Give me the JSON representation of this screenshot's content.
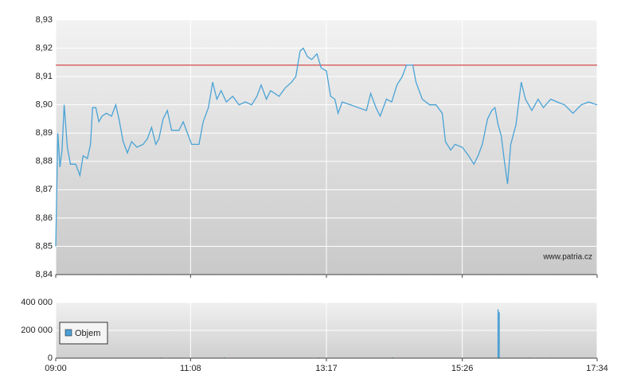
{
  "chart_data": [
    {
      "type": "line",
      "x": [
        540,
        542,
        544,
        546,
        548,
        551,
        554,
        559,
        563,
        566,
        570,
        573,
        575,
        578,
        581,
        584,
        588,
        593,
        597,
        600,
        604,
        608,
        612,
        617,
        623,
        627,
        631,
        635,
        638,
        642,
        646,
        650,
        657,
        661,
        669,
        676,
        680,
        685,
        689,
        693,
        697,
        702,
        708,
        714,
        720,
        726,
        731,
        735,
        740,
        744,
        752,
        758,
        764,
        768,
        772,
        775,
        779,
        783,
        788,
        792,
        797,
        801,
        805,
        808,
        812,
        820,
        827,
        835,
        839,
        844,
        848,
        854,
        859,
        864,
        869,
        873,
        879,
        882,
        888,
        895,
        901,
        907,
        910,
        915,
        919,
        926,
        932,
        937,
        941,
        945,
        950,
        954,
        957,
        960,
        963,
        966,
        969,
        972,
        977,
        982,
        986,
        992,
        998,
        1003,
        1010,
        1016,
        1023,
        1031,
        1039,
        1046,
        1054
      ],
      "values": [
        8.85,
        8.89,
        8.878,
        8.884,
        8.9,
        8.885,
        8.879,
        8.879,
        8.875,
        8.882,
        8.881,
        8.886,
        8.899,
        8.899,
        8.894,
        8.896,
        8.897,
        8.896,
        8.9,
        8.895,
        8.887,
        8.883,
        8.887,
        8.885,
        8.886,
        8.888,
        8.892,
        8.886,
        8.888,
        8.895,
        8.898,
        8.891,
        8.891,
        8.894,
        8.886,
        8.886,
        8.894,
        8.899,
        8.908,
        8.902,
        8.905,
        8.901,
        8.903,
        8.9,
        8.901,
        8.9,
        8.903,
        8.907,
        8.902,
        8.905,
        8.903,
        8.906,
        8.908,
        8.91,
        8.919,
        8.92,
        8.917,
        8.916,
        8.918,
        8.913,
        8.912,
        8.903,
        8.902,
        8.897,
        8.901,
        8.9,
        8.899,
        8.898,
        8.904,
        8.899,
        8.896,
        8.902,
        8.901,
        8.907,
        8.91,
        8.914,
        8.914,
        8.908,
        8.902,
        8.9,
        8.9,
        8.897,
        8.887,
        8.884,
        8.886,
        8.885,
        8.882,
        8.879,
        8.882,
        8.886,
        8.895,
        8.898,
        8.899,
        8.893,
        8.889,
        8.88,
        8.872,
        8.886,
        8.893,
        8.908,
        8.902,
        8.898,
        8.902,
        8.899,
        8.902,
        8.901,
        8.9,
        8.897,
        8.9,
        8.901,
        8.9
      ],
      "color": "#4aa3d6",
      "xlim": [
        540,
        1054
      ],
      "ylim": [
        8.84,
        8.93
      ],
      "yticks": [
        {
          "value": 8.84,
          "label": "8,84"
        },
        {
          "value": 8.85,
          "label": "8,85"
        },
        {
          "value": 8.86,
          "label": "8,86"
        },
        {
          "value": 8.87,
          "label": "8,87"
        },
        {
          "value": 8.88,
          "label": "8,88"
        },
        {
          "value": 8.89,
          "label": "8,89"
        },
        {
          "value": 8.9,
          "label": "8,90"
        },
        {
          "value": 8.91,
          "label": "8,91"
        },
        {
          "value": 8.92,
          "label": "8,92"
        },
        {
          "value": 8.93,
          "label": "8,93"
        }
      ],
      "reference_line": {
        "value": 8.914,
        "color": "#cc2222"
      },
      "watermark": "www.patria.cz",
      "grid": true
    },
    {
      "type": "bar",
      "x": [
        560,
        600,
        640,
        700,
        730,
        760,
        790,
        820,
        860,
        900,
        940,
        960,
        961,
        990,
        1010,
        1040
      ],
      "series": [
        {
          "name": "Objem",
          "color": "#4a9fd4",
          "values": [
            4000,
            3000,
            5000,
            6000,
            4000,
            3000,
            5000,
            4000,
            6000,
            3000,
            4000,
            350000,
            330000,
            5000,
            4000,
            3000
          ]
        }
      ],
      "xlim": [
        540,
        1054
      ],
      "xticks": [
        {
          "value": 540,
          "label": "09:00"
        },
        {
          "value": 668,
          "label": "11:08"
        },
        {
          "value": 797,
          "label": "13:17"
        },
        {
          "value": 926,
          "label": "15:26"
        },
        {
          "value": 1054,
          "label": "17:34"
        }
      ],
      "ylim": [
        0,
        400000
      ],
      "yticks": [
        {
          "value": 0,
          "label": "0"
        },
        {
          "value": 200000,
          "label": "200 000"
        },
        {
          "value": 400000,
          "label": "400 000"
        }
      ],
      "grid": true
    }
  ]
}
